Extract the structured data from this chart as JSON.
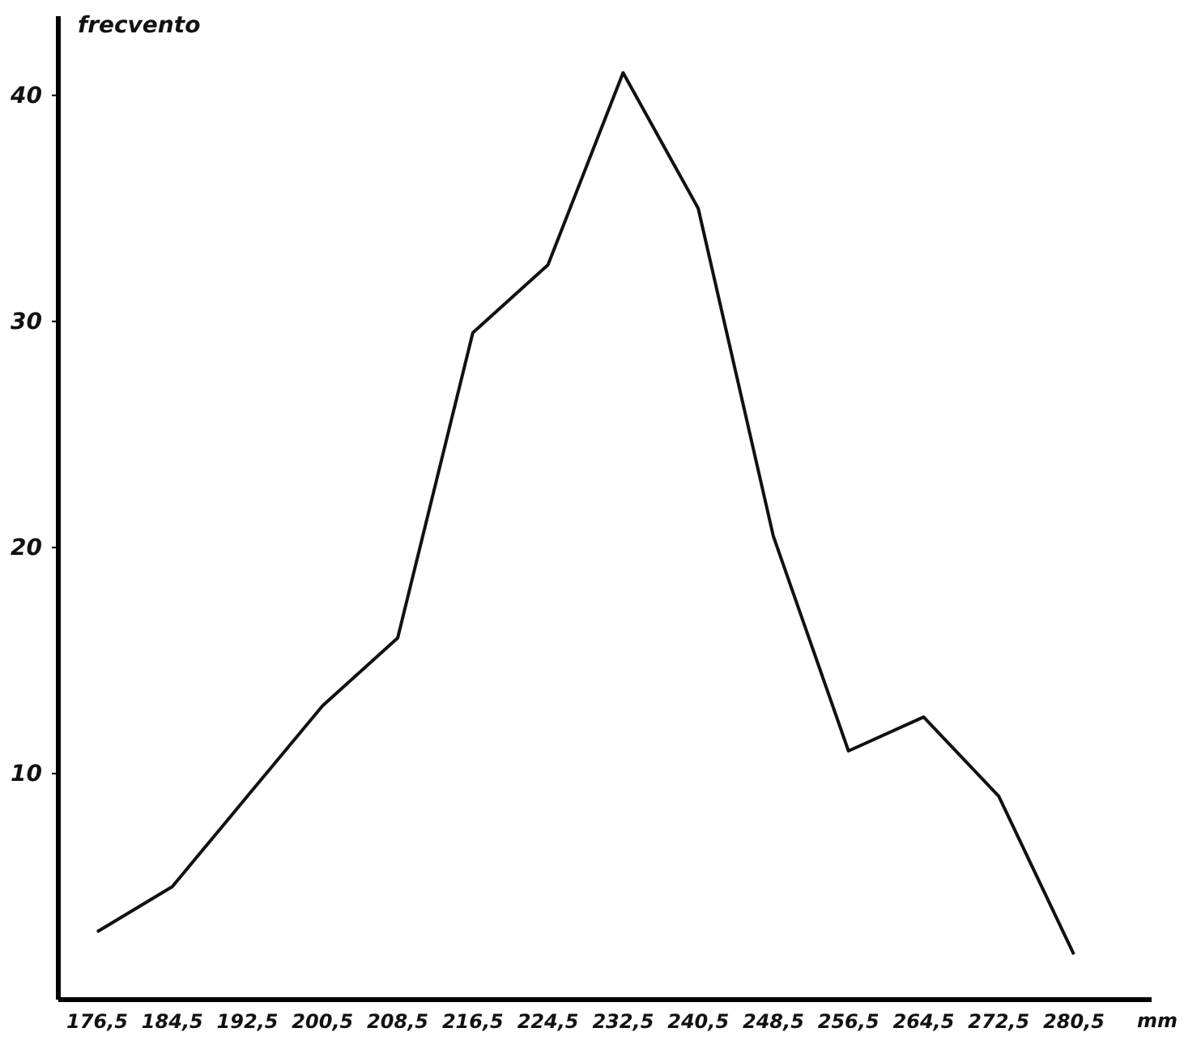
{
  "chart_data": {
    "type": "line",
    "ylabel": "frecvento",
    "xlabel": "mm",
    "categories": [
      "176,5",
      "184,5",
      "192,5",
      "200,5",
      "208,5",
      "216,5",
      "224,5",
      "232,5",
      "240,5",
      "248,5",
      "256,5",
      "264,5",
      "272,5",
      "280,5"
    ],
    "series": [
      {
        "color": "#111111",
        "values": [
          3,
          5,
          9,
          13,
          16,
          29.5,
          32.5,
          41,
          35,
          20.5,
          11,
          12.5,
          9,
          2
        ]
      }
    ],
    "ylim": [
      0,
      43.5
    ],
    "yticks": [
      10,
      20,
      30,
      40
    ],
    "grid": false,
    "marker": "none",
    "line_style": "solid"
  }
}
